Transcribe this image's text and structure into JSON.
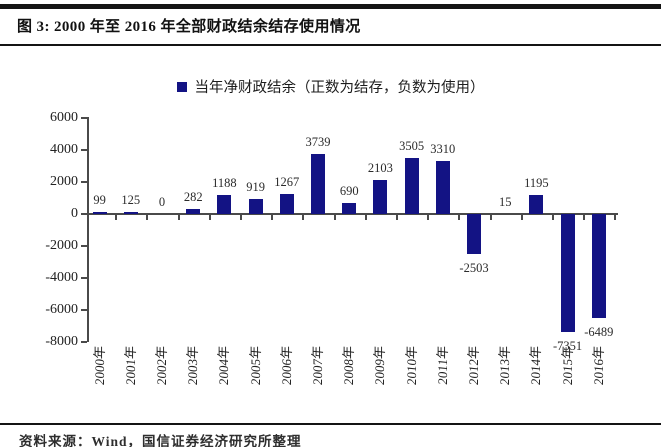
{
  "header": {
    "title": "图 3: 2000 年至 2016 年全部财政结余结存使用情况"
  },
  "chart_data": {
    "type": "bar",
    "title": "图 3: 2000 年至 2016 年全部财政结余结存使用情况",
    "categories": [
      "2000年",
      "2001年",
      "2002年",
      "2003年",
      "2004年",
      "2005年",
      "2006年",
      "2007年",
      "2008年",
      "2009年",
      "2010年",
      "2011年",
      "2012年",
      "2013年",
      "2014年",
      "2015年",
      "2016年"
    ],
    "series": [
      {
        "name": "当年净财政结余（正数为结存，负数为使用）",
        "values": [
          99,
          125,
          0,
          282,
          1188,
          919,
          1267,
          3739,
          690,
          2103,
          3505,
          3310,
          -2503,
          15,
          1195,
          -7351,
          -6489
        ]
      }
    ],
    "data_labels": [
      99,
      125,
      0,
      282,
      1188,
      919,
      1267,
      3739,
      690,
      2103,
      3505,
      3310,
      -2503,
      15,
      1195,
      -7351,
      -6489
    ],
    "xlabel": "",
    "ylabel": "",
    "ylim": [
      -8000,
      6000
    ],
    "yticks": [
      6000,
      4000,
      2000,
      0,
      -2000,
      -4000,
      -6000,
      -8000
    ],
    "grid": false,
    "legend_position": "top",
    "bar_color": "#131384",
    "axis_color": "#4a4a4a"
  },
  "footer": {
    "source": "资料来源：Wind，国信证券经济研究所整理"
  }
}
